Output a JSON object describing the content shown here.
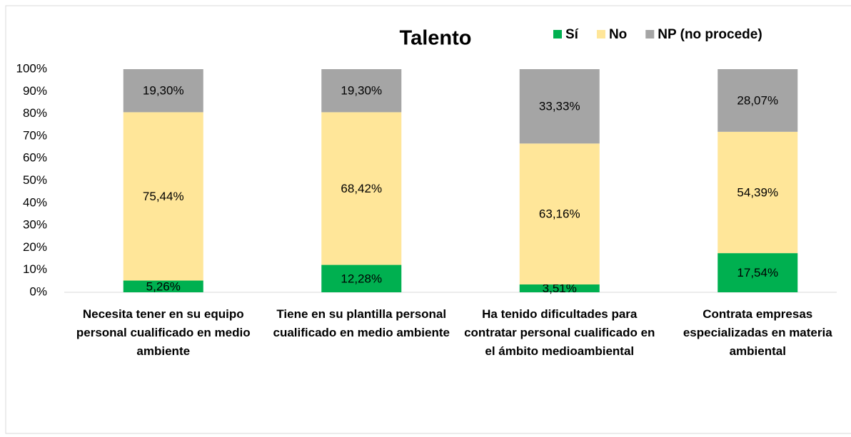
{
  "chart_data": {
    "type": "stacked_bar",
    "title": "Talento",
    "categories": [
      "Necesita tener en su equipo personal cualificado en medio ambiente",
      "Tiene en su plantilla personal cualificado en medio ambiente",
      "Ha tenido dificultades para contratar personal cualificado en el ámbito medioambiental",
      "Contrata empresas especializadas en materia ambiental"
    ],
    "series": [
      {
        "name": "Sí",
        "color": "#00b050",
        "values": [
          5.26,
          12.28,
          3.51,
          17.54
        ],
        "value_labels": [
          "5,26%",
          "12,28%",
          "3,51%",
          "17,54%"
        ]
      },
      {
        "name": "No",
        "color": "#ffe699",
        "values": [
          75.44,
          68.42,
          63.16,
          54.39
        ],
        "value_labels": [
          "75,44%",
          "68,42%",
          "63,16%",
          "54,39%"
        ]
      },
      {
        "name": "NP (no procede)",
        "color": "#a5a5a5",
        "values": [
          19.3,
          19.3,
          33.33,
          28.07
        ],
        "value_labels": [
          "19,30%",
          "19,30%",
          "33,33%",
          "28,07%"
        ]
      }
    ],
    "ylim": [
      0,
      100
    ],
    "yticks": [
      {
        "value": 0,
        "label": "0%"
      },
      {
        "value": 10,
        "label": "10%"
      },
      {
        "value": 20,
        "label": "20%"
      },
      {
        "value": 30,
        "label": "30%"
      },
      {
        "value": 40,
        "label": "40%"
      },
      {
        "value": 50,
        "label": "50%"
      },
      {
        "value": 60,
        "label": "60%"
      },
      {
        "value": 70,
        "label": "70%"
      },
      {
        "value": 80,
        "label": "80%"
      },
      {
        "value": 90,
        "label": "90%"
      },
      {
        "value": 100,
        "label": "100%"
      }
    ],
    "legend": "top-right",
    "grid": false
  }
}
